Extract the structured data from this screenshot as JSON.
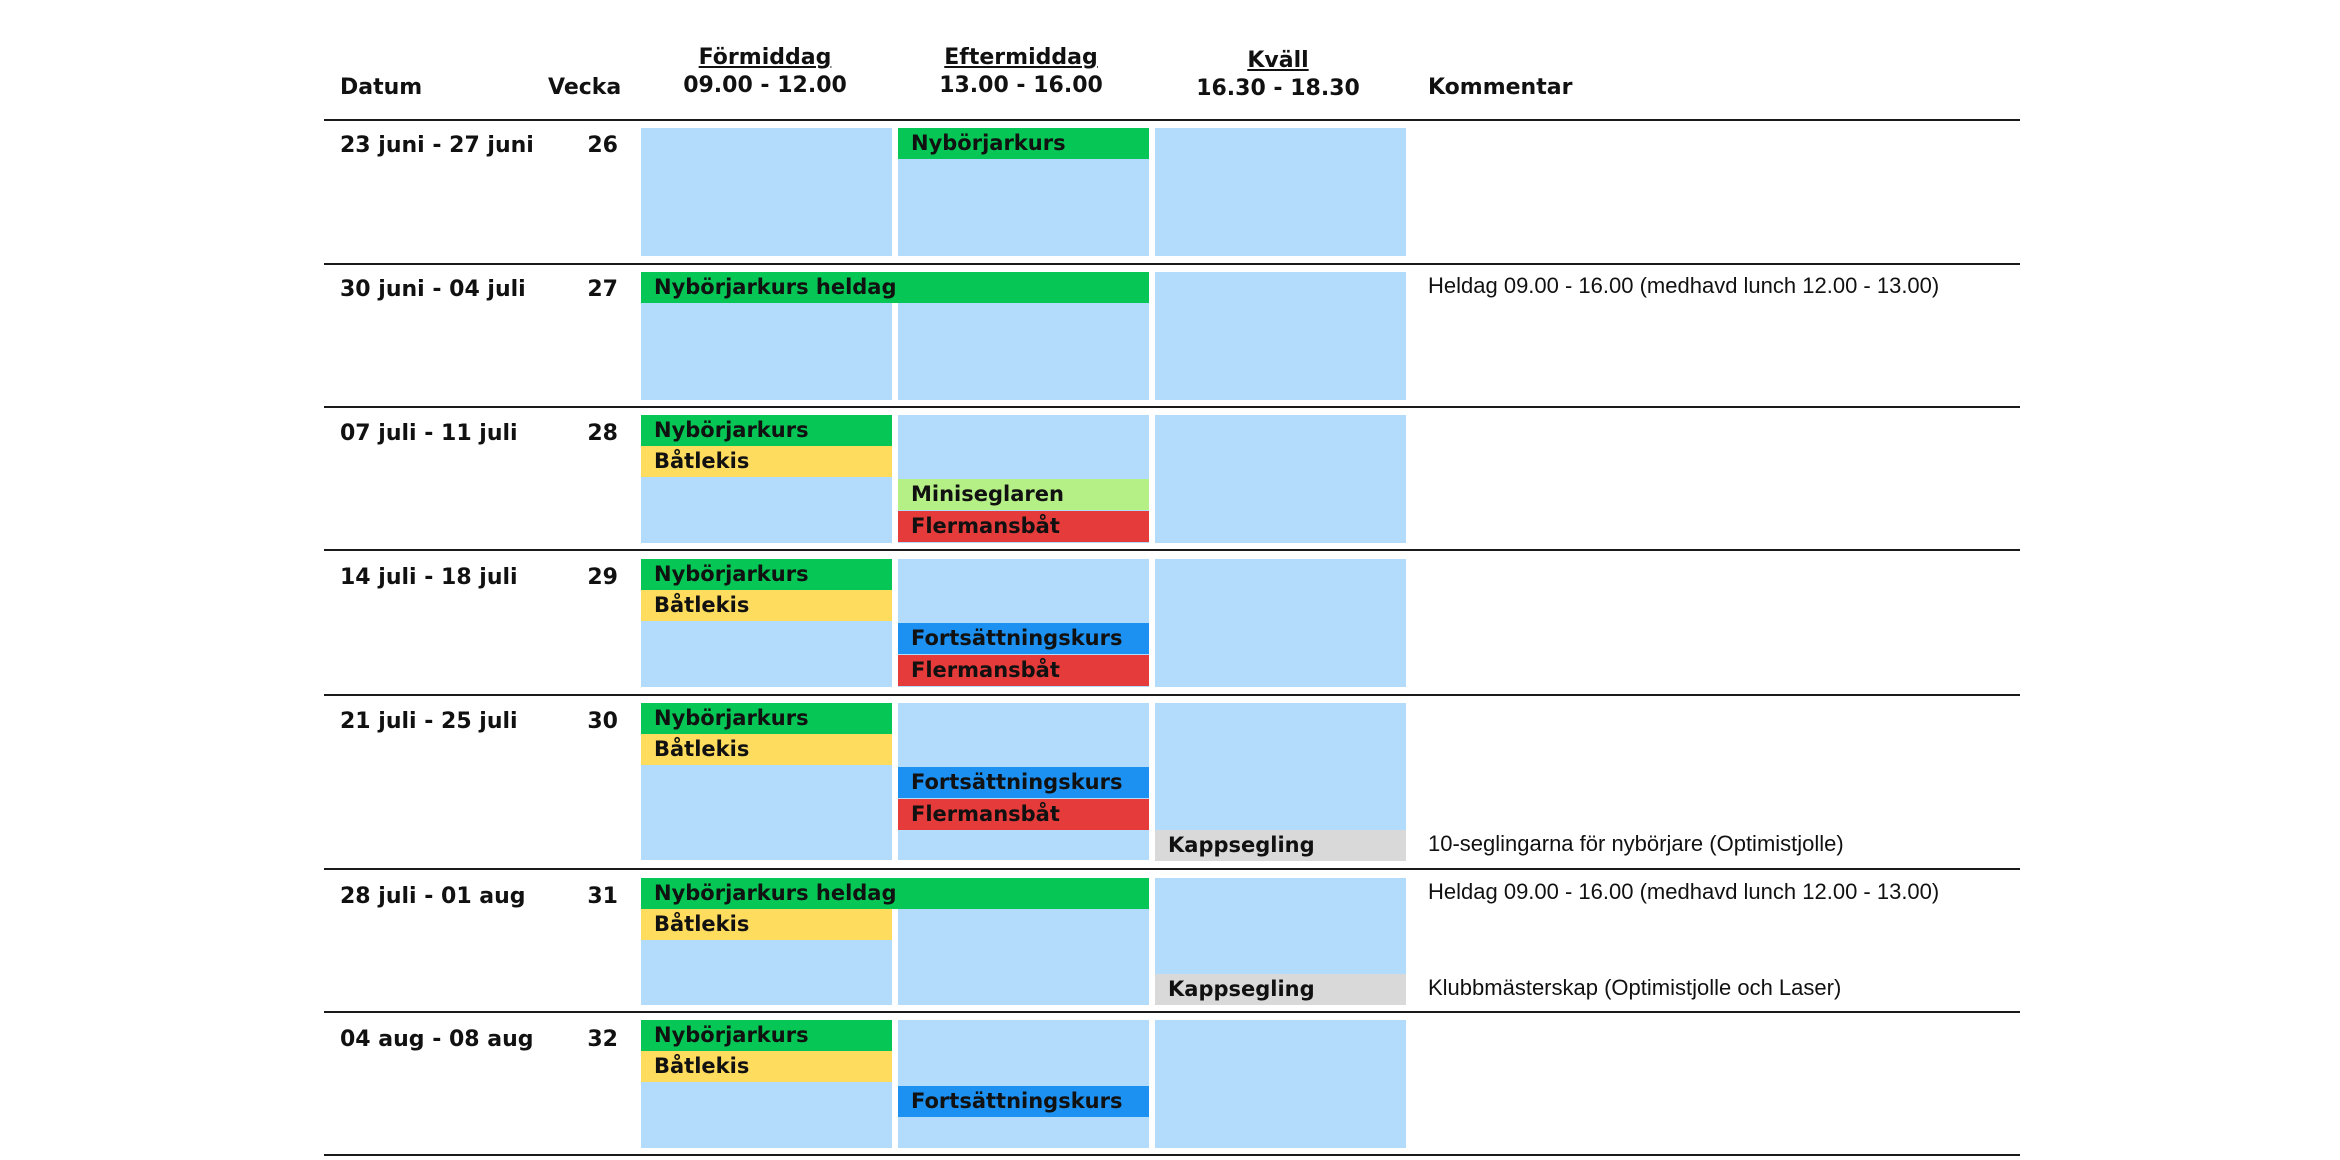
{
  "header": {
    "datum": "Datum",
    "vecka": "Vecka",
    "formiddag": {
      "title": "Förmiddag",
      "time": "09.00 - 12.00"
    },
    "eftermiddag": {
      "title": "Eftermiddag",
      "time": "13.00 - 16.00"
    },
    "kvall": {
      "title": "Kväll",
      "time": "16.30 - 18.30"
    },
    "kommentar": "Kommentar"
  },
  "rows": [
    {
      "date": "23 juni - 27 juni",
      "week": "26",
      "comment1": "",
      "comment2": ""
    },
    {
      "date": "30 juni - 04 juli",
      "week": "27",
      "comment1": "Heldag 09.00 - 16.00 (medhavd lunch 12.00 - 13.00)",
      "comment2": ""
    },
    {
      "date": "07 juli - 11 juli",
      "week": "28",
      "comment1": "",
      "comment2": ""
    },
    {
      "date": "14 juli - 18 juli",
      "week": "29",
      "comment1": "",
      "comment2": ""
    },
    {
      "date": "21 juli - 25 juli",
      "week": "30",
      "comment1": "",
      "comment2": "10-seglingarna för nybörjare (Optimistjolle)"
    },
    {
      "date": "28 juli - 01 aug",
      "week": "31",
      "comment1": "Heldag 09.00 - 16.00 (medhavd lunch 12.00 - 13.00)",
      "comment2": "Klubbmästerskap (Optimistjolle och Laser)"
    },
    {
      "date": "04 aug - 08 aug",
      "week": "32",
      "comment1": "",
      "comment2": ""
    }
  ],
  "courses": {
    "nyborjarkurs": "Nybörjarkurs",
    "nyborjarkurs_heldag": "Nybörjarkurs heldag",
    "batlekis": "Båtlekis",
    "miniseglaren": "Miniseglaren",
    "flermansbat": "Flermansbåt",
    "fortsattningskurs": "Fortsättningskurs",
    "kappsegling": "Kappsegling"
  },
  "colors": {
    "slot_background": "#b3dcfc",
    "nyborjarkurs": "#06c655",
    "batlekis": "#fedc5e",
    "miniseglaren": "#b5f086",
    "flermansbat": "#e63b3b",
    "fortsattningskurs": "#1d91f1",
    "kappsegling": "#d9d9d9"
  }
}
